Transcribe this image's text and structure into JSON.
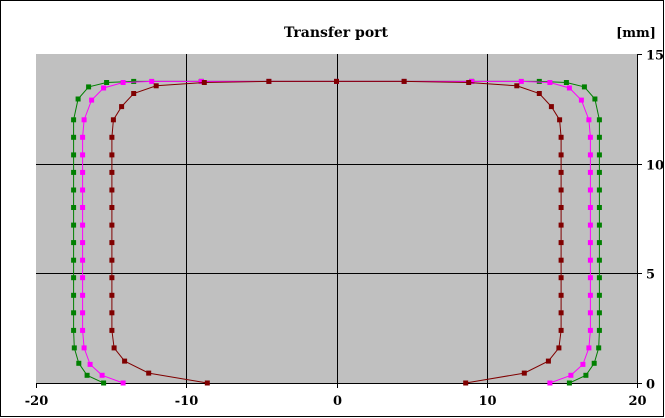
{
  "chart_data": {
    "type": "line",
    "title": "Transfer port",
    "unit_label": "[mm]",
    "xlabel": "",
    "ylabel": "",
    "xlim": [
      -20,
      20
    ],
    "ylim": [
      0,
      15
    ],
    "x_ticks": [
      -20,
      -10,
      0,
      10,
      20
    ],
    "x_tick_labels": [
      "-20",
      "-10",
      "0",
      "10",
      "20"
    ],
    "y_ticks": [
      0,
      5,
      10,
      15
    ],
    "y_tick_labels": [
      "0",
      "5",
      "10",
      "15"
    ],
    "y_axis_side": "right",
    "grid": true,
    "background_color": "#c0c0c0",
    "series": [
      {
        "color": "#008000",
        "points": [
          [
            15.5,
            0.0
          ],
          [
            16.6,
            0.35
          ],
          [
            17.15,
            0.9
          ],
          [
            17.45,
            1.6
          ],
          [
            17.5,
            2.4
          ],
          [
            17.5,
            3.2
          ],
          [
            17.5,
            4.0
          ],
          [
            17.5,
            4.8
          ],
          [
            17.5,
            5.6
          ],
          [
            17.5,
            6.4
          ],
          [
            17.5,
            7.2
          ],
          [
            17.5,
            8.0
          ],
          [
            17.5,
            8.8
          ],
          [
            17.5,
            9.6
          ],
          [
            17.5,
            10.4
          ],
          [
            17.5,
            11.2
          ],
          [
            17.5,
            12.0
          ],
          [
            17.2,
            12.95
          ],
          [
            16.5,
            13.5
          ],
          [
            15.3,
            13.7
          ],
          [
            13.5,
            13.75
          ],
          [
            9.0,
            13.75
          ],
          [
            4.5,
            13.75
          ],
          [
            0.0,
            13.75
          ],
          [
            -4.5,
            13.75
          ],
          [
            -9.0,
            13.75
          ],
          [
            -13.5,
            13.75
          ],
          [
            -15.3,
            13.7
          ],
          [
            -16.5,
            13.5
          ],
          [
            -17.2,
            12.95
          ],
          [
            -17.5,
            12.0
          ],
          [
            -17.5,
            11.2
          ],
          [
            -17.5,
            10.4
          ],
          [
            -17.5,
            9.6
          ],
          [
            -17.5,
            8.8
          ],
          [
            -17.5,
            8.0
          ],
          [
            -17.5,
            7.2
          ],
          [
            -17.5,
            6.4
          ],
          [
            -17.5,
            5.6
          ],
          [
            -17.5,
            4.8
          ],
          [
            -17.5,
            4.0
          ],
          [
            -17.5,
            3.2
          ],
          [
            -17.5,
            2.4
          ],
          [
            -17.45,
            1.6
          ],
          [
            -17.15,
            0.9
          ],
          [
            -16.6,
            0.35
          ],
          [
            -15.5,
            0.0
          ]
        ]
      },
      {
        "color": "#ff00ff",
        "points": [
          [
            14.2,
            0.0
          ],
          [
            15.6,
            0.35
          ],
          [
            16.4,
            0.85
          ],
          [
            16.8,
            1.6
          ],
          [
            16.9,
            2.4
          ],
          [
            16.9,
            3.2
          ],
          [
            16.9,
            4.0
          ],
          [
            16.9,
            4.8
          ],
          [
            16.9,
            5.6
          ],
          [
            16.9,
            6.4
          ],
          [
            16.9,
            7.2
          ],
          [
            16.9,
            8.0
          ],
          [
            16.9,
            8.8
          ],
          [
            16.9,
            9.6
          ],
          [
            16.9,
            10.4
          ],
          [
            16.9,
            11.2
          ],
          [
            16.8,
            12.0
          ],
          [
            16.3,
            12.9
          ],
          [
            15.5,
            13.45
          ],
          [
            14.2,
            13.7
          ],
          [
            12.3,
            13.75
          ],
          [
            9.0,
            13.75
          ],
          [
            4.5,
            13.75
          ],
          [
            0.0,
            13.75
          ],
          [
            -4.5,
            13.75
          ],
          [
            -9.0,
            13.75
          ],
          [
            -12.3,
            13.75
          ],
          [
            -14.2,
            13.7
          ],
          [
            -15.5,
            13.45
          ],
          [
            -16.3,
            12.9
          ],
          [
            -16.8,
            12.0
          ],
          [
            -16.9,
            11.2
          ],
          [
            -16.9,
            10.4
          ],
          [
            -16.9,
            9.6
          ],
          [
            -16.9,
            8.8
          ],
          [
            -16.9,
            8.0
          ],
          [
            -16.9,
            7.2
          ],
          [
            -16.9,
            6.4
          ],
          [
            -16.9,
            5.6
          ],
          [
            -16.9,
            4.8
          ],
          [
            -16.9,
            4.0
          ],
          [
            -16.9,
            3.2
          ],
          [
            -16.9,
            2.4
          ],
          [
            -16.8,
            1.6
          ],
          [
            -16.4,
            0.85
          ],
          [
            -15.6,
            0.35
          ],
          [
            -14.2,
            0.0
          ]
        ]
      },
      {
        "color": "#800000",
        "points": [
          [
            8.6,
            0.0
          ],
          [
            12.5,
            0.45
          ],
          [
            14.1,
            1.0
          ],
          [
            14.8,
            1.6
          ],
          [
            14.95,
            2.4
          ],
          [
            14.95,
            3.2
          ],
          [
            14.95,
            4.0
          ],
          [
            14.95,
            4.8
          ],
          [
            14.95,
            5.6
          ],
          [
            14.95,
            6.4
          ],
          [
            14.95,
            7.2
          ],
          [
            14.95,
            8.0
          ],
          [
            14.95,
            8.8
          ],
          [
            14.95,
            9.6
          ],
          [
            14.95,
            10.4
          ],
          [
            14.95,
            11.2
          ],
          [
            14.85,
            12.0
          ],
          [
            14.3,
            12.6
          ],
          [
            13.5,
            13.2
          ],
          [
            12.0,
            13.55
          ],
          [
            8.8,
            13.7
          ],
          [
            4.5,
            13.75
          ],
          [
            0.0,
            13.75
          ],
          [
            -4.5,
            13.75
          ],
          [
            -8.8,
            13.7
          ],
          [
            -12.0,
            13.55
          ],
          [
            -13.5,
            13.2
          ],
          [
            -14.3,
            12.6
          ],
          [
            -14.85,
            12.0
          ],
          [
            -14.95,
            11.2
          ],
          [
            -14.95,
            10.4
          ],
          [
            -14.95,
            9.6
          ],
          [
            -14.95,
            8.8
          ],
          [
            -14.95,
            8.0
          ],
          [
            -14.95,
            7.2
          ],
          [
            -14.95,
            6.4
          ],
          [
            -14.95,
            5.6
          ],
          [
            -14.95,
            4.8
          ],
          [
            -14.95,
            4.0
          ],
          [
            -14.95,
            3.2
          ],
          [
            -14.95,
            2.4
          ],
          [
            -14.8,
            1.6
          ],
          [
            -14.1,
            1.0
          ],
          [
            -12.5,
            0.45
          ],
          [
            -8.6,
            0.0
          ]
        ]
      }
    ]
  }
}
